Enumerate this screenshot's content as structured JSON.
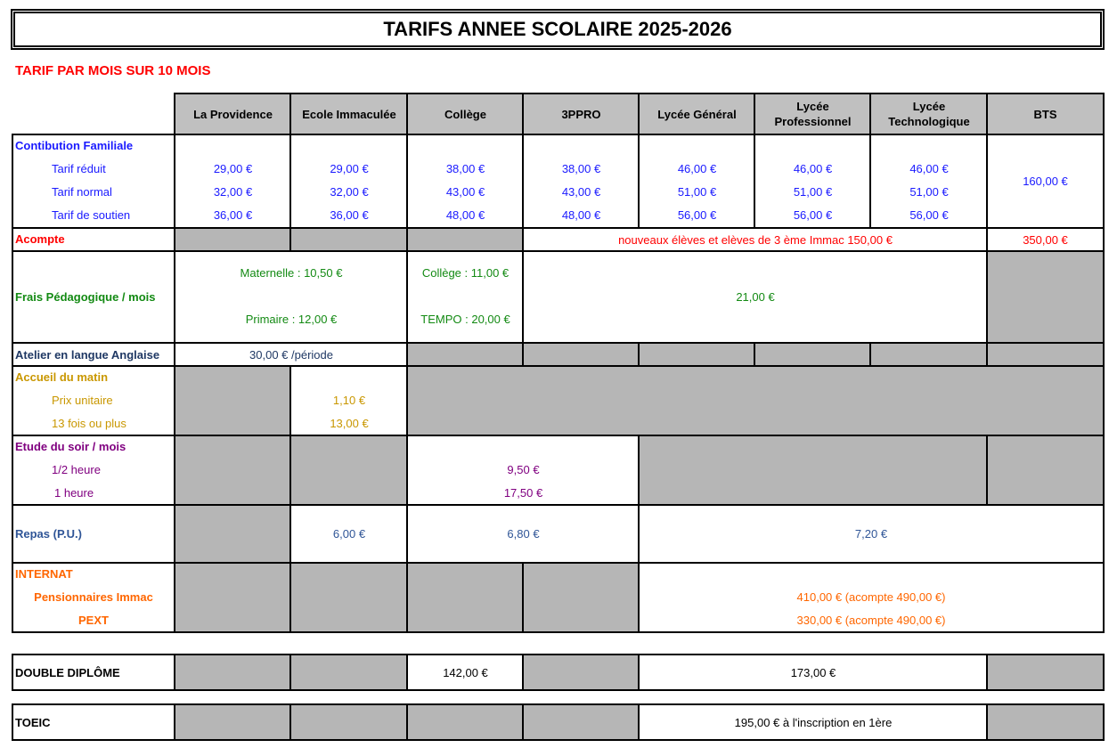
{
  "title": "TARIFS ANNEE SCOLAIRE 2025-2026",
  "subtitle": "TARIF PAR MOIS SUR 10 MOIS",
  "columns": [
    "La Providence",
    "Ecole Immaculée",
    "Collège",
    "3PPRO",
    "Lycée Général",
    "Lycée Professionnel",
    "Lycée Technologique",
    "BTS"
  ],
  "colors": {
    "contribution": "#1a1aff",
    "acompte": "#ff0000",
    "frais": "#138a13",
    "atelier": "#1f3864",
    "accueil": "#c99700",
    "etude": "#800080",
    "repas": "#2f5597",
    "internat": "#ff6600"
  },
  "contribution": {
    "label": "Contibution Familiale",
    "rows": [
      "Tarif réduit",
      "Tarif normal",
      "Tarif de soutien"
    ],
    "values": [
      [
        "29,00 €",
        "32,00 €",
        "36,00 €"
      ],
      [
        "29,00 €",
        "32,00 €",
        "36,00 €"
      ],
      [
        "38,00 €",
        "43,00 €",
        "48,00 €"
      ],
      [
        "38,00 €",
        "43,00 €",
        "48,00 €"
      ],
      [
        "46,00 €",
        "51,00 €",
        "56,00 €"
      ],
      [
        "46,00 €",
        "51,00 €",
        "56,00 €"
      ],
      [
        "46,00 €",
        "51,00 €",
        "56,00 €"
      ]
    ],
    "bts": "160,00 €"
  },
  "acompte": {
    "label": "Acompte",
    "text": "nouveaux élèves et elèves de 3 ème Immac 150,00 €",
    "bts": "350,00 €"
  },
  "frais": {
    "label": "Frais Pédagogique / mois",
    "maternelle": "Maternelle : 10,50 €",
    "primaire": "Primaire : 12,00 €",
    "college": "Collège : 11,00 €",
    "tempo": "TEMPO : 20,00 €",
    "lycee": "21,00 €"
  },
  "atelier": {
    "label": "Atelier en langue Anglaise",
    "value": "30,00 € /période"
  },
  "accueil": {
    "label": "Accueil du matin",
    "rows": [
      "Prix unitaire",
      "13 fois ou plus"
    ],
    "values": [
      "1,10 €",
      "13,00 €"
    ]
  },
  "etude": {
    "label": "Etude du soir / mois",
    "rows": [
      "1/2 heure",
      "1 heure"
    ],
    "values": [
      "9,50 €",
      "17,50 €"
    ]
  },
  "repas": {
    "label": "Repas (P.U.)",
    "immaculee": "6,00 €",
    "college": "6,80 €",
    "lycee": "7,20 €"
  },
  "internat": {
    "label": "INTERNAT",
    "rows": [
      "Pensionnaires Immac",
      "PEXT"
    ],
    "values": [
      "410,00 € (acompte 490,00 €)",
      "330,00 € (acompte 490,00 €)"
    ]
  },
  "double_diplome": {
    "label": "DOUBLE DIPLÔME",
    "college": "142,00 €",
    "lycee": "173,00 €"
  },
  "toeic": {
    "label": "TOEIC",
    "value": "195,00 € à l'inscription en 1ère"
  }
}
